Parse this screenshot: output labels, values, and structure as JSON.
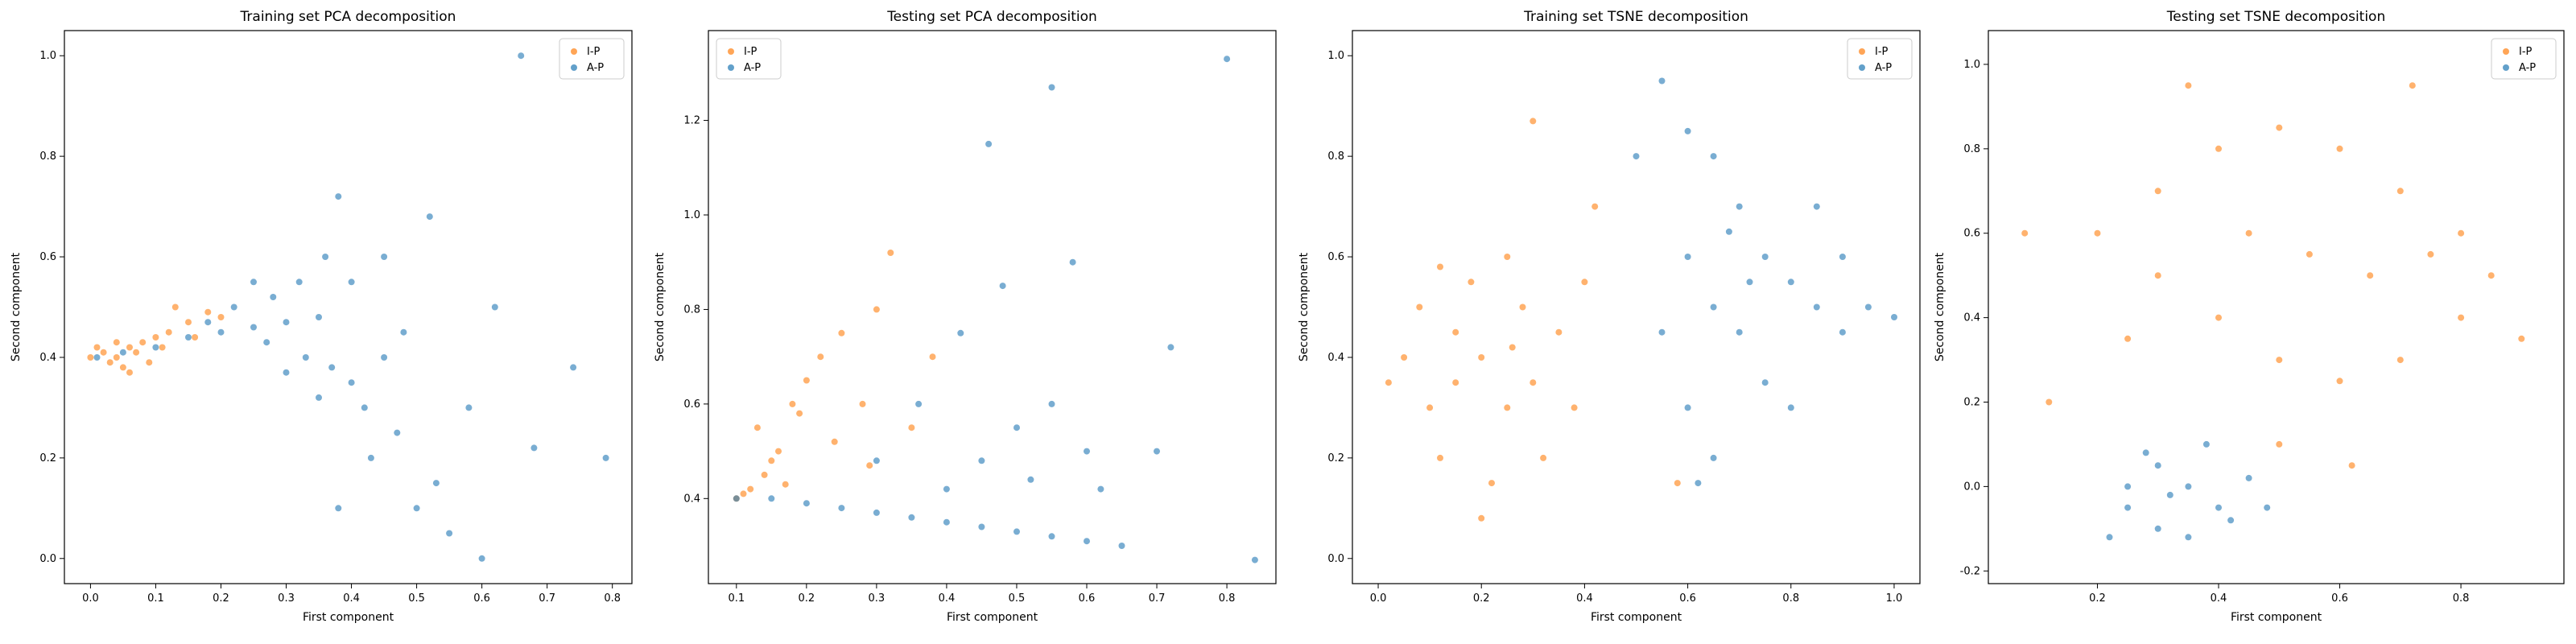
{
  "colors": {
    "ip": "#ff7f0e",
    "ap": "#1f77b4"
  },
  "chart_data": [
    {
      "type": "scatter",
      "title": "Training set PCA decomposition",
      "xlabel": "First component",
      "ylabel": "Second component",
      "xlim": [
        -0.04,
        0.83
      ],
      "ylim": [
        -0.05,
        1.05
      ],
      "xticks": [
        0.0,
        0.1,
        0.2,
        0.3,
        0.4,
        0.5,
        0.6,
        0.7,
        0.8
      ],
      "yticks": [
        0.0,
        0.2,
        0.4,
        0.6,
        0.8,
        1.0
      ],
      "legend": "top-right",
      "series": [
        {
          "name": "I-P",
          "points": [
            [
              0.0,
              0.4
            ],
            [
              0.02,
              0.41
            ],
            [
              0.04,
              0.4
            ],
            [
              0.06,
              0.42
            ],
            [
              0.03,
              0.39
            ],
            [
              0.08,
              0.43
            ],
            [
              0.1,
              0.44
            ],
            [
              0.12,
              0.45
            ],
            [
              0.05,
              0.38
            ],
            [
              0.07,
              0.41
            ],
            [
              0.15,
              0.47
            ],
            [
              0.18,
              0.49
            ],
            [
              0.01,
              0.42
            ],
            [
              0.09,
              0.39
            ],
            [
              0.11,
              0.42
            ],
            [
              0.04,
              0.43
            ],
            [
              0.13,
              0.5
            ],
            [
              0.2,
              0.48
            ],
            [
              0.06,
              0.37
            ],
            [
              0.16,
              0.44
            ]
          ]
        },
        {
          "name": "A-P",
          "points": [
            [
              0.01,
              0.4
            ],
            [
              0.05,
              0.41
            ],
            [
              0.1,
              0.42
            ],
            [
              0.15,
              0.44
            ],
            [
              0.2,
              0.45
            ],
            [
              0.25,
              0.46
            ],
            [
              0.3,
              0.47
            ],
            [
              0.35,
              0.48
            ],
            [
              0.22,
              0.5
            ],
            [
              0.28,
              0.52
            ],
            [
              0.32,
              0.55
            ],
            [
              0.27,
              0.43
            ],
            [
              0.33,
              0.4
            ],
            [
              0.37,
              0.38
            ],
            [
              0.4,
              0.35
            ],
            [
              0.42,
              0.3
            ],
            [
              0.3,
              0.37
            ],
            [
              0.35,
              0.32
            ],
            [
              0.45,
              0.6
            ],
            [
              0.38,
              0.72
            ],
            [
              0.52,
              0.68
            ],
            [
              0.66,
              1.0
            ],
            [
              0.74,
              0.38
            ],
            [
              0.79,
              0.2
            ],
            [
              0.6,
              0.0
            ],
            [
              0.55,
              0.05
            ],
            [
              0.5,
              0.1
            ],
            [
              0.47,
              0.25
            ],
            [
              0.43,
              0.2
            ],
            [
              0.38,
              0.1
            ],
            [
              0.58,
              0.3
            ],
            [
              0.62,
              0.5
            ],
            [
              0.68,
              0.22
            ],
            [
              0.48,
              0.45
            ],
            [
              0.25,
              0.55
            ],
            [
              0.18,
              0.47
            ],
            [
              0.4,
              0.55
            ],
            [
              0.45,
              0.4
            ],
            [
              0.53,
              0.15
            ],
            [
              0.36,
              0.6
            ]
          ]
        }
      ]
    },
    {
      "type": "scatter",
      "title": "Testing set PCA decomposition",
      "xlabel": "First component",
      "ylabel": "Second component",
      "xlim": [
        0.06,
        0.87
      ],
      "ylim": [
        0.22,
        1.39
      ],
      "xticks": [
        0.1,
        0.2,
        0.3,
        0.4,
        0.5,
        0.6,
        0.7,
        0.8
      ],
      "yticks": [
        0.4,
        0.6,
        0.8,
        1.0,
        1.2
      ],
      "legend": "top-left",
      "series": [
        {
          "name": "I-P",
          "points": [
            [
              0.1,
              0.4
            ],
            [
              0.12,
              0.42
            ],
            [
              0.14,
              0.45
            ],
            [
              0.16,
              0.5
            ],
            [
              0.13,
              0.55
            ],
            [
              0.18,
              0.6
            ],
            [
              0.15,
              0.48
            ],
            [
              0.2,
              0.65
            ],
            [
              0.22,
              0.7
            ],
            [
              0.25,
              0.75
            ],
            [
              0.3,
              0.8
            ],
            [
              0.32,
              0.92
            ],
            [
              0.28,
              0.6
            ],
            [
              0.35,
              0.55
            ],
            [
              0.17,
              0.43
            ],
            [
              0.11,
              0.41
            ],
            [
              0.24,
              0.52
            ],
            [
              0.19,
              0.58
            ],
            [
              0.38,
              0.7
            ],
            [
              0.29,
              0.47
            ]
          ]
        },
        {
          "name": "A-P",
          "points": [
            [
              0.1,
              0.4
            ],
            [
              0.15,
              0.4
            ],
            [
              0.2,
              0.39
            ],
            [
              0.25,
              0.38
            ],
            [
              0.3,
              0.37
            ],
            [
              0.35,
              0.36
            ],
            [
              0.4,
              0.35
            ],
            [
              0.45,
              0.34
            ],
            [
              0.5,
              0.33
            ],
            [
              0.55,
              0.32
            ],
            [
              0.6,
              0.31
            ],
            [
              0.65,
              0.3
            ],
            [
              0.4,
              0.42
            ],
            [
              0.45,
              0.48
            ],
            [
              0.5,
              0.55
            ],
            [
              0.55,
              0.6
            ],
            [
              0.6,
              0.5
            ],
            [
              0.46,
              1.15
            ],
            [
              0.55,
              1.27
            ],
            [
              0.8,
              1.33
            ],
            [
              0.84,
              0.27
            ],
            [
              0.7,
              0.5
            ],
            [
              0.72,
              0.72
            ],
            [
              0.58,
              0.9
            ],
            [
              0.48,
              0.85
            ],
            [
              0.62,
              0.42
            ],
            [
              0.36,
              0.6
            ],
            [
              0.42,
              0.75
            ],
            [
              0.3,
              0.48
            ],
            [
              0.52,
              0.44
            ]
          ]
        }
      ]
    },
    {
      "type": "scatter",
      "title": "Training set TSNE decomposition",
      "xlabel": "First component",
      "ylabel": "Second component",
      "xlim": [
        -0.05,
        1.05
      ],
      "ylim": [
        -0.05,
        1.05
      ],
      "xticks": [
        0.0,
        0.2,
        0.4,
        0.6,
        0.8,
        1.0
      ],
      "yticks": [
        0.0,
        0.2,
        0.4,
        0.6,
        0.8,
        1.0
      ],
      "legend": "top-right",
      "series": [
        {
          "name": "I-P",
          "points": [
            [
              0.1,
              0.3
            ],
            [
              0.15,
              0.35
            ],
            [
              0.2,
              0.4
            ],
            [
              0.25,
              0.3
            ],
            [
              0.3,
              0.35
            ],
            [
              0.05,
              0.4
            ],
            [
              0.12,
              0.2
            ],
            [
              0.22,
              0.15
            ],
            [
              0.28,
              0.5
            ],
            [
              0.35,
              0.45
            ],
            [
              0.18,
              0.55
            ],
            [
              0.25,
              0.6
            ],
            [
              0.08,
              0.5
            ],
            [
              0.38,
              0.3
            ],
            [
              0.32,
              0.2
            ],
            [
              0.2,
              0.08
            ],
            [
              0.15,
              0.45
            ],
            [
              0.3,
              0.87
            ],
            [
              0.42,
              0.7
            ],
            [
              0.58,
              0.15
            ],
            [
              0.02,
              0.35
            ],
            [
              0.26,
              0.42
            ],
            [
              0.4,
              0.55
            ],
            [
              0.12,
              0.58
            ]
          ]
        },
        {
          "name": "A-P",
          "points": [
            [
              0.55,
              0.95
            ],
            [
              0.6,
              0.85
            ],
            [
              0.65,
              0.8
            ],
            [
              0.7,
              0.7
            ],
            [
              0.75,
              0.6
            ],
            [
              0.8,
              0.55
            ],
            [
              0.85,
              0.5
            ],
            [
              0.9,
              0.45
            ],
            [
              0.95,
              0.5
            ],
            [
              0.6,
              0.6
            ],
            [
              0.65,
              0.5
            ],
            [
              0.7,
              0.45
            ],
            [
              0.75,
              0.35
            ],
            [
              0.8,
              0.3
            ],
            [
              0.6,
              0.3
            ],
            [
              0.65,
              0.2
            ],
            [
              0.62,
              0.15
            ],
            [
              0.9,
              0.6
            ],
            [
              0.85,
              0.7
            ],
            [
              0.5,
              0.8
            ],
            [
              1.0,
              0.48
            ],
            [
              0.55,
              0.45
            ],
            [
              0.72,
              0.55
            ],
            [
              0.68,
              0.65
            ]
          ]
        }
      ]
    },
    {
      "type": "scatter",
      "title": "Testing set TSNE decomposition",
      "xlabel": "First component",
      "ylabel": "Second component",
      "xlim": [
        0.02,
        0.97
      ],
      "ylim": [
        -0.23,
        1.08
      ],
      "xticks": [
        0.2,
        0.4,
        0.6,
        0.8
      ],
      "yticks": [
        -0.2,
        0.0,
        0.2,
        0.4,
        0.6,
        0.8,
        1.0
      ],
      "legend": "top-right",
      "series": [
        {
          "name": "I-P",
          "points": [
            [
              0.2,
              0.6
            ],
            [
              0.3,
              0.7
            ],
            [
              0.4,
              0.8
            ],
            [
              0.5,
              0.85
            ],
            [
              0.6,
              0.8
            ],
            [
              0.7,
              0.7
            ],
            [
              0.8,
              0.6
            ],
            [
              0.85,
              0.5
            ],
            [
              0.8,
              0.4
            ],
            [
              0.7,
              0.3
            ],
            [
              0.6,
              0.25
            ],
            [
              0.5,
              0.3
            ],
            [
              0.4,
              0.4
            ],
            [
              0.3,
              0.5
            ],
            [
              0.25,
              0.35
            ],
            [
              0.45,
              0.6
            ],
            [
              0.55,
              0.55
            ],
            [
              0.65,
              0.5
            ],
            [
              0.75,
              0.55
            ],
            [
              0.35,
              0.95
            ],
            [
              0.08,
              0.6
            ],
            [
              0.12,
              0.2
            ],
            [
              0.72,
              0.95
            ],
            [
              0.9,
              0.35
            ],
            [
              0.5,
              0.1
            ],
            [
              0.62,
              0.05
            ]
          ]
        },
        {
          "name": "A-P",
          "points": [
            [
              0.25,
              0.0
            ],
            [
              0.3,
              0.05
            ],
            [
              0.35,
              0.0
            ],
            [
              0.4,
              -0.05
            ],
            [
              0.45,
              0.02
            ],
            [
              0.3,
              -0.1
            ],
            [
              0.25,
              -0.05
            ],
            [
              0.35,
              -0.12
            ],
            [
              0.42,
              -0.08
            ],
            [
              0.28,
              0.08
            ],
            [
              0.38,
              0.1
            ],
            [
              0.32,
              -0.02
            ],
            [
              0.48,
              -0.05
            ],
            [
              0.22,
              -0.12
            ]
          ]
        }
      ]
    }
  ]
}
